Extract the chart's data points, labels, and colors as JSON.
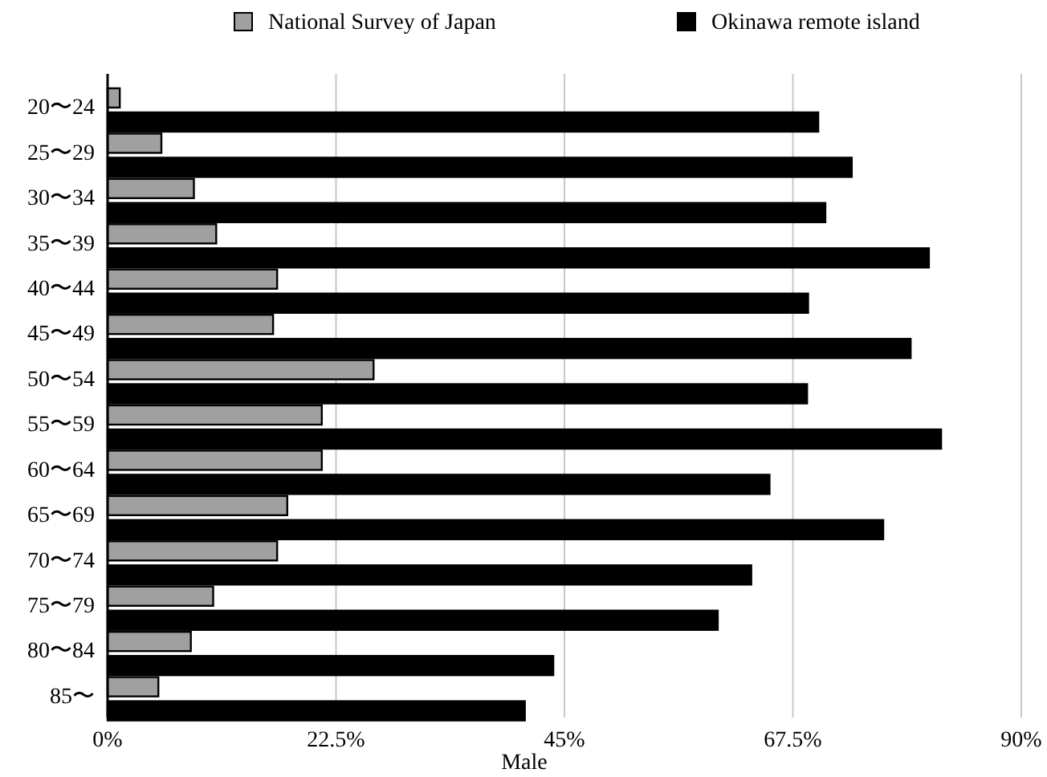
{
  "chart_data": {
    "type": "bar",
    "orientation": "horizontal",
    "xlabel": "Male",
    "categories": [
      "20〜24",
      "25〜29",
      "30〜34",
      "35〜39",
      "40〜44",
      "45〜49",
      "50〜54",
      "55〜59",
      "60〜64",
      "65〜69",
      "70〜74",
      "75〜79",
      "80〜84",
      "85〜"
    ],
    "series": [
      {
        "name": "National Survey of Japan",
        "color": "#a0a0a0",
        "values": [
          1.2,
          5.3,
          8.5,
          10.7,
          16.7,
          16.3,
          26.2,
          21.1,
          21.1,
          17.7,
          16.7,
          10.4,
          8.2,
          5.0
        ]
      },
      {
        "name": "Okinawa remote island",
        "color": "#000000",
        "values": [
          70.0,
          73.3,
          70.7,
          80.9,
          69.0,
          79.1,
          68.9,
          82.1,
          65.2,
          76.4,
          63.4,
          60.1,
          43.9,
          41.1
        ]
      }
    ],
    "xlim": [
      0,
      90
    ],
    "xticks": [
      {
        "value": 0,
        "label": "0%"
      },
      {
        "value": 22.5,
        "label": "22.5%"
      },
      {
        "value": 45,
        "label": "45%"
      },
      {
        "value": 67.5,
        "label": "67.5%"
      },
      {
        "value": 90,
        "label": "90%"
      }
    ],
    "grid": "x",
    "legend": "top"
  }
}
